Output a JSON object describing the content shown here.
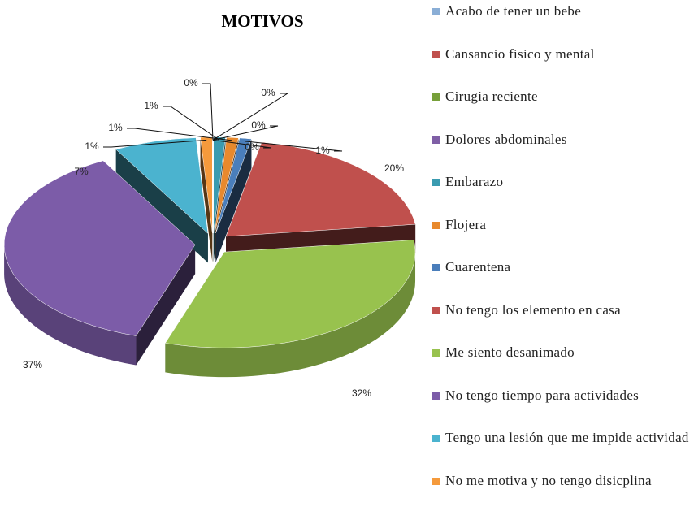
{
  "chart_data": {
    "type": "pie",
    "title": "MOTIVOS",
    "categories": [
      "Acabo de tener un bebe",
      "Cansancio fisico y mental",
      "Cirugia reciente",
      "Dolores abdominales",
      "Embarazo",
      "Flojera",
      "Cuarentena",
      "No tengo los elemento en casa",
      "Me siento desanimado",
      "No tengo tiempo para actividades",
      "Tengo una lesión que me impide actividad",
      "No me motiva y no tengo disicplina"
    ],
    "values": [
      0,
      0,
      0,
      0,
      1,
      1,
      1,
      20,
      32,
      37,
      7,
      1
    ],
    "value_labels": [
      "0%",
      "0%",
      "0%",
      "0%",
      "1%",
      "1%",
      "1%",
      "20%",
      "32%",
      "37%",
      "7%",
      "1%"
    ],
    "colors": [
      "#8aaed6",
      "#c0504d",
      "#77a03a",
      "#7f5fa6",
      "#3a9bb0",
      "#e8892d",
      "#4a7ebb",
      "#c0504d",
      "#98c24e",
      "#7c5ca8",
      "#4bb3cf",
      "#f59a3c"
    ],
    "legend": "right"
  }
}
